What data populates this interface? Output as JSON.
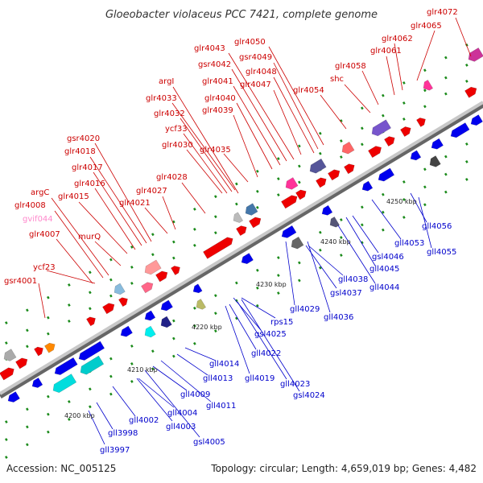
{
  "title": "Gloeobacter violaceus PCC 7421, complete genome",
  "accession": "Accession: NC_005125",
  "summary": "Topology: circular; Length: 4,659,019 bp; Genes: 4,482",
  "colors": {
    "forward_label": "#cc0000",
    "reverse_label": "#0000cc",
    "pseudo_label": "#ff88cc",
    "backbone": "#999999",
    "tick_marks": "#1a8a1a"
  },
  "scale_ticks": [
    "4200 kbp",
    "4210 kbp",
    "4220 kbp",
    "4230 kbp",
    "4240 kbp",
    "4250 kbp"
  ],
  "top_genes": [
    "gsr4001",
    "ycf23",
    "glr4007",
    "gvif044",
    "glr4008",
    "argC",
    "murQ",
    "glr4015",
    "glr4016",
    "glr4017",
    "glr4018",
    "gsr4020",
    "glr4021",
    "glr4027",
    "glr4028",
    "glr4030",
    "ycf33",
    "glr4032",
    "glr4033",
    "argI",
    "glr4035",
    "glr4039",
    "glr4040",
    "glr4041",
    "gsr4042",
    "glr4043",
    "glr4047",
    "glr4048",
    "gsr4049",
    "glr4050",
    "glr4054",
    "shc",
    "glr4058",
    "glr4061",
    "glr4062",
    "glr4065",
    "glr4072"
  ],
  "bottom_genes": [
    "gll3997",
    "gll3998",
    "gll4002",
    "gll4003",
    "gll4004",
    "gsl4005",
    "gll4009",
    "gll4011",
    "gll4013",
    "gll4014",
    "gll4019",
    "gll4022",
    "gsl4024",
    "gll4023",
    "gsl4025",
    "rps15",
    "gll4029",
    "gll4036",
    "gsl4037",
    "gll4038",
    "gll4044",
    "gll4045",
    "gsl4046",
    "gll4053",
    "gll4055",
    "gll4056"
  ]
}
